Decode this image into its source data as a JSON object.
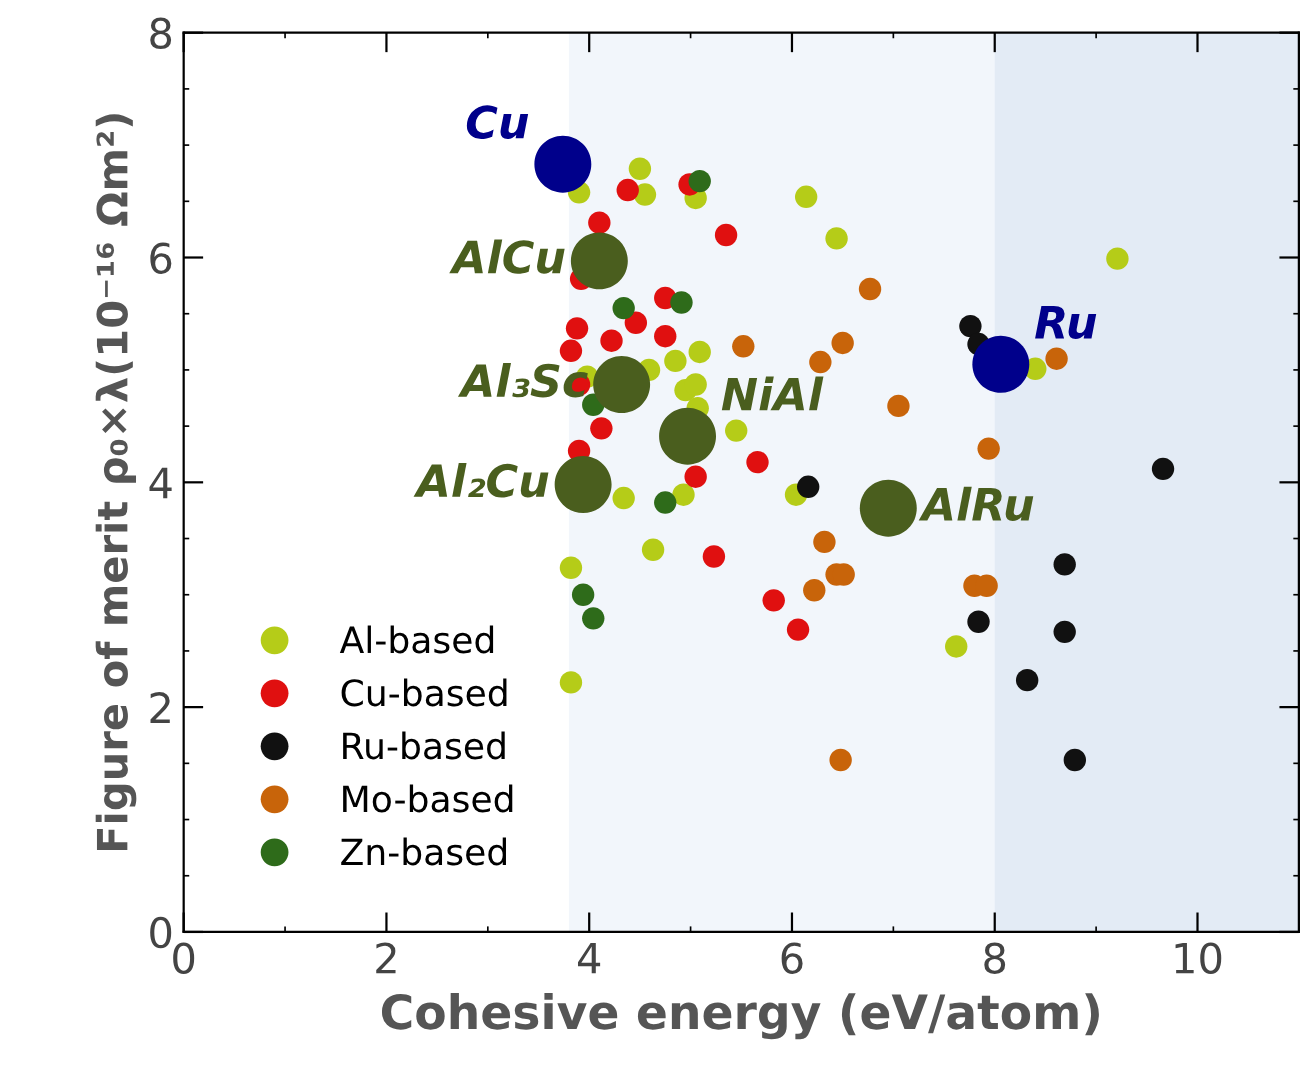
{
  "chart_data": {
    "type": "scatter",
    "xlabel": "Cohesive energy (eV/atom)",
    "ylabel": "Figure of merit ρ₀×λ(10⁻¹⁶ Ωm²)",
    "xlim": [
      0,
      11
    ],
    "ylim": [
      0,
      8
    ],
    "xticks": [
      0,
      2,
      4,
      6,
      8,
      10
    ],
    "yticks": [
      0,
      2,
      4,
      6,
      8
    ],
    "grid": false,
    "legend": "bottom left",
    "marker": "circle",
    "bands": [
      {
        "axis": "x",
        "from": 3.8,
        "to": 11,
        "color": "#f2f6fb"
      },
      {
        "axis": "x",
        "from": 8.0,
        "to": 11,
        "color": "#e3ebf5"
      }
    ],
    "series": [
      {
        "name": "Al-based",
        "color": "#b5cc18",
        "x": [
          3.9,
          4.5,
          4.55,
          5.05,
          6.14,
          6.44,
          4.85,
          5.09,
          4.59,
          3.98,
          4.95,
          5.05,
          5.07,
          5.45,
          4.34,
          4.93,
          6.04,
          4.63,
          3.82,
          3.82,
          9.21,
          8.4,
          7.62
        ],
        "values": [
          6.58,
          6.79,
          6.56,
          6.53,
          6.54,
          6.17,
          5.08,
          5.16,
          5.0,
          4.94,
          4.82,
          4.87,
          4.66,
          4.46,
          3.86,
          3.89,
          3.89,
          3.4,
          3.24,
          2.22,
          5.99,
          5.01,
          2.54
        ]
      },
      {
        "name": "Cu-based",
        "color": "#e01010",
        "x": [
          4.1,
          4.38,
          4.99,
          5.35,
          3.92,
          4.75,
          4.46,
          3.88,
          3.82,
          4.22,
          4.75,
          3.9,
          4.12,
          3.9,
          5.05,
          5.66,
          5.23,
          5.82,
          6.06
        ],
        "values": [
          6.31,
          6.6,
          6.65,
          6.2,
          5.81,
          5.64,
          5.42,
          5.37,
          5.17,
          5.26,
          5.3,
          4.87,
          4.48,
          4.28,
          4.05,
          4.18,
          3.34,
          2.95,
          2.69
        ]
      },
      {
        "name": "Ru-based",
        "color": "#111111",
        "x": [
          6.16,
          7.76,
          7.84,
          9.66,
          8.69,
          7.84,
          8.69,
          8.32,
          8.79
        ],
        "values": [
          3.96,
          5.39,
          5.23,
          4.12,
          3.27,
          2.76,
          2.67,
          2.24,
          1.53
        ]
      },
      {
        "name": "Mo-based",
        "color": "#c8640a",
        "x": [
          5.52,
          6.28,
          6.5,
          6.32,
          6.22,
          6.44,
          6.51,
          6.48,
          6.77,
          7.05,
          8.61,
          7.94,
          7.8,
          7.92
        ],
        "values": [
          5.21,
          5.07,
          5.24,
          3.47,
          3.04,
          3.18,
          3.18,
          1.53,
          5.72,
          4.68,
          5.1,
          4.3,
          3.08,
          3.08
        ]
      },
      {
        "name": "Zn-based",
        "color": "#2e6b1a",
        "x": [
          5.09,
          4.34,
          4.91,
          4.04,
          4.75,
          3.94,
          4.04
        ],
        "values": [
          6.68,
          5.55,
          5.6,
          4.69,
          3.82,
          3.0,
          2.79
        ]
      },
      {
        "type": "bubble",
        "color": "#00008b",
        "x": [
          3.74,
          8.06
        ],
        "values": [
          6.83,
          5.05
        ],
        "sizes": [
          1,
          1
        ]
      },
      {
        "type": "bubble",
        "color": "#4a5e1e",
        "x": [
          4.1,
          4.32,
          4.97,
          3.94,
          6.95
        ],
        "values": [
          5.97,
          4.87,
          4.41,
          3.98,
          3.77
        ],
        "sizes": [
          1,
          1,
          1,
          1,
          1
        ]
      }
    ],
    "annotations": [
      {
        "text": "Cu",
        "x": 3.74,
        "y": 6.83
      },
      {
        "text": "Ru",
        "x": 8.06,
        "y": 5.05
      },
      {
        "text": "AlCu",
        "x": 4.1,
        "y": 5.97
      },
      {
        "text": "Al₃Sc",
        "x": 4.32,
        "y": 4.87
      },
      {
        "text": "NiAl",
        "x": 4.97,
        "y": 4.41
      },
      {
        "text": "Al₂Cu",
        "x": 3.94,
        "y": 3.98
      },
      {
        "text": "AlRu",
        "x": 6.95,
        "y": 3.77
      }
    ]
  }
}
